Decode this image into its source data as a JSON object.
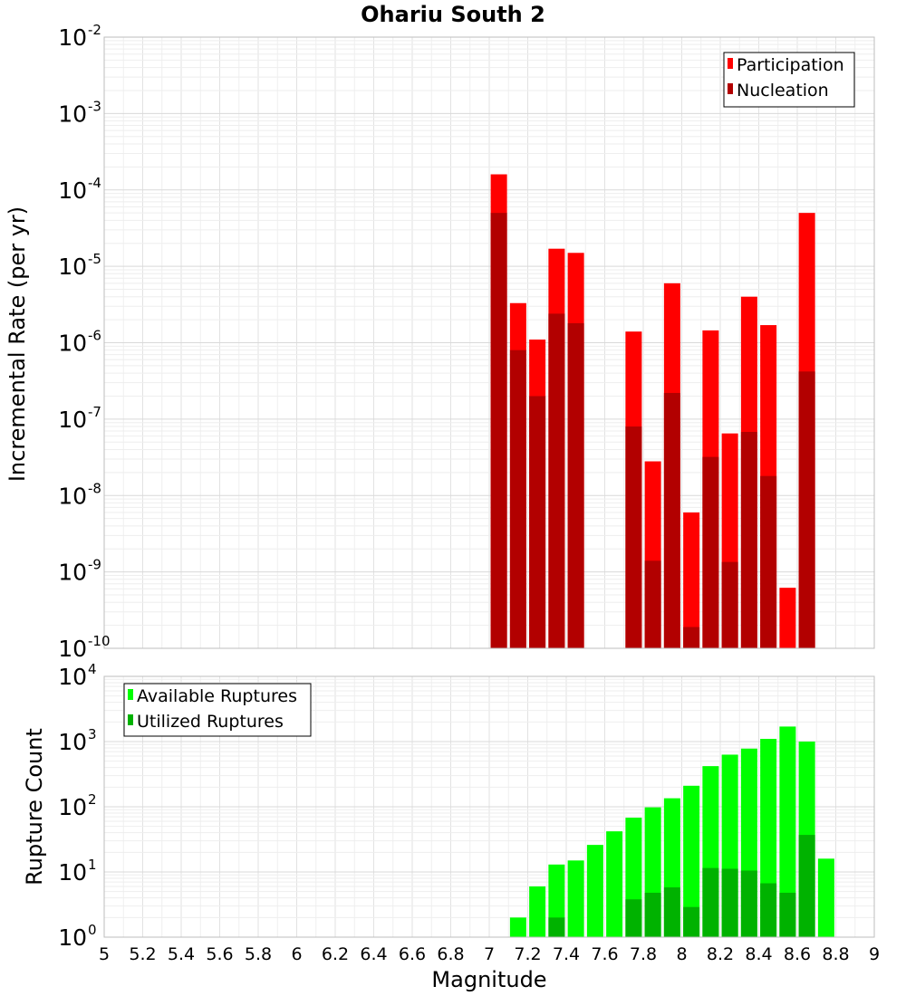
{
  "title": "Ohariu South 2",
  "chart_data": [
    {
      "type": "bar",
      "scale": "log",
      "ylabel": "Incremental Rate (per yr)",
      "xlabel": "",
      "xlim": [
        5,
        9
      ],
      "ylim_exp": [
        -10,
        -2
      ],
      "y_tick_labels": [
        {
          "exp": -2,
          "base": "10",
          "sup": "-2"
        },
        {
          "exp": -3,
          "base": "10",
          "sup": "-3"
        },
        {
          "exp": -4,
          "base": "10",
          "sup": "-4"
        },
        {
          "exp": -5,
          "base": "10",
          "sup": "-5"
        },
        {
          "exp": -6,
          "base": "10",
          "sup": "-6"
        },
        {
          "exp": -7,
          "base": "10",
          "sup": "-7"
        },
        {
          "exp": -8,
          "base": "10",
          "sup": "-8"
        },
        {
          "exp": -9,
          "base": "10",
          "sup": "-9"
        },
        {
          "exp": -10,
          "base": "10",
          "sup": "-10"
        }
      ],
      "legend": [
        "Participation",
        "Nucleation"
      ],
      "series": [
        {
          "name": "Participation",
          "color": "#ff0000",
          "points": [
            {
              "x": 7.05,
              "y": 0.00016
            },
            {
              "x": 7.15,
              "y": 3.3e-06
            },
            {
              "x": 7.25,
              "y": 1.1e-06
            },
            {
              "x": 7.35,
              "y": 1.7e-05
            },
            {
              "x": 7.45,
              "y": 1.5e-05
            },
            {
              "x": 7.75,
              "y": 1.4e-06
            },
            {
              "x": 7.85,
              "y": 2.8e-08
            },
            {
              "x": 7.95,
              "y": 6e-06
            },
            {
              "x": 8.05,
              "y": 6e-09
            },
            {
              "x": 8.15,
              "y": 1.45e-06
            },
            {
              "x": 8.25,
              "y": 6.5e-08
            },
            {
              "x": 8.35,
              "y": 4e-06
            },
            {
              "x": 8.45,
              "y": 1.7e-06
            },
            {
              "x": 8.55,
              "y": 6.2e-10
            },
            {
              "x": 8.65,
              "y": 5e-05
            }
          ]
        },
        {
          "name": "Nucleation",
          "color": "#b20000",
          "points": [
            {
              "x": 7.05,
              "y": 5e-05
            },
            {
              "x": 7.15,
              "y": 8e-07
            },
            {
              "x": 7.25,
              "y": 2e-07
            },
            {
              "x": 7.35,
              "y": 2.4e-06
            },
            {
              "x": 7.45,
              "y": 1.8e-06
            },
            {
              "x": 7.75,
              "y": 8e-08
            },
            {
              "x": 7.85,
              "y": 1.4e-09
            },
            {
              "x": 7.95,
              "y": 2.2e-07
            },
            {
              "x": 8.05,
              "y": 1.9e-10
            },
            {
              "x": 8.15,
              "y": 3.2e-08
            },
            {
              "x": 8.25,
              "y": 1.35e-09
            },
            {
              "x": 8.35,
              "y": 6.8e-08
            },
            {
              "x": 8.45,
              "y": 1.8e-08
            },
            {
              "x": 8.65,
              "y": 4.2e-07
            }
          ]
        }
      ]
    },
    {
      "type": "bar",
      "scale": "log",
      "ylabel": "Rupture Count",
      "xlabel": "Magnitude",
      "xlim": [
        5,
        9
      ],
      "ylim_exp": [
        0,
        4
      ],
      "y_tick_labels": [
        {
          "exp": 4,
          "base": "10",
          "sup": "4"
        },
        {
          "exp": 3,
          "base": "10",
          "sup": "3"
        },
        {
          "exp": 2,
          "base": "10",
          "sup": "2"
        },
        {
          "exp": 1,
          "base": "10",
          "sup": "1"
        },
        {
          "exp": 0,
          "base": "10",
          "sup": "0"
        }
      ],
      "x_ticks": [
        "5",
        "5.2",
        "5.4",
        "5.6",
        "5.8",
        "6",
        "6.2",
        "6.4",
        "6.6",
        "6.8",
        "7",
        "7.2",
        "7.4",
        "7.6",
        "7.8",
        "8",
        "8.2",
        "8.4",
        "8.6",
        "8.8",
        "9"
      ],
      "legend": [
        "Available Ruptures",
        "Utilized Ruptures"
      ],
      "series": [
        {
          "name": "Available Ruptures",
          "color": "#00ff00",
          "points": [
            {
              "x": 6.55,
              "y": 1
            },
            {
              "x": 6.85,
              "y": 1
            },
            {
              "x": 6.95,
              "y": 1
            },
            {
              "x": 7.05,
              "y": 1
            },
            {
              "x": 7.15,
              "y": 2
            },
            {
              "x": 7.25,
              "y": 6
            },
            {
              "x": 7.35,
              "y": 13
            },
            {
              "x": 7.45,
              "y": 15
            },
            {
              "x": 7.55,
              "y": 26
            },
            {
              "x": 7.65,
              "y": 42
            },
            {
              "x": 7.75,
              "y": 68
            },
            {
              "x": 7.85,
              "y": 98
            },
            {
              "x": 7.95,
              "y": 135
            },
            {
              "x": 8.05,
              "y": 210
            },
            {
              "x": 8.15,
              "y": 420
            },
            {
              "x": 8.25,
              "y": 630
            },
            {
              "x": 8.35,
              "y": 780
            },
            {
              "x": 8.45,
              "y": 1100
            },
            {
              "x": 8.55,
              "y": 1700
            },
            {
              "x": 8.65,
              "y": 1000
            },
            {
              "x": 8.75,
              "y": 16
            }
          ]
        },
        {
          "name": "Utilized Ruptures",
          "color": "#00b200",
          "points": [
            {
              "x": 7.05,
              "y": 1
            },
            {
              "x": 7.15,
              "y": 1
            },
            {
              "x": 7.25,
              "y": 1
            },
            {
              "x": 7.35,
              "y": 2
            },
            {
              "x": 7.45,
              "y": 1
            },
            {
              "x": 7.55,
              "y": 1
            },
            {
              "x": 7.75,
              "y": 3.8
            },
            {
              "x": 7.85,
              "y": 4.8
            },
            {
              "x": 7.95,
              "y": 5.8
            },
            {
              "x": 8.05,
              "y": 2.9
            },
            {
              "x": 8.15,
              "y": 11.5
            },
            {
              "x": 8.25,
              "y": 11.2
            },
            {
              "x": 8.35,
              "y": 10.5
            },
            {
              "x": 8.45,
              "y": 6.7
            },
            {
              "x": 8.55,
              "y": 4.8
            },
            {
              "x": 8.65,
              "y": 37
            }
          ]
        }
      ]
    }
  ]
}
